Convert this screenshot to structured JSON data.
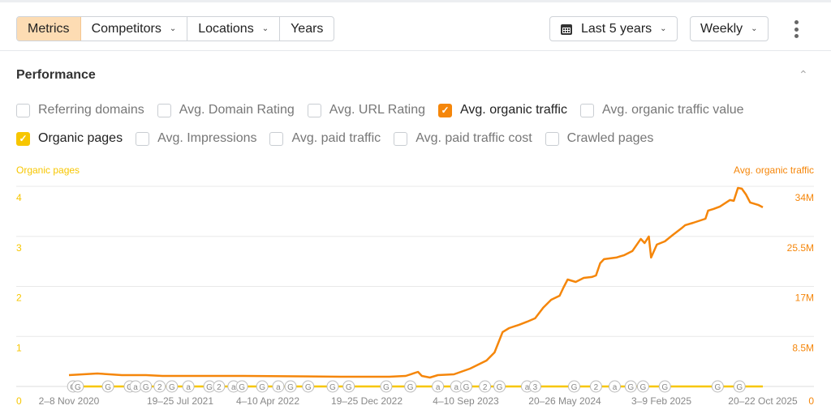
{
  "toolbar": {
    "tabs": [
      {
        "label": "Metrics",
        "active": true
      },
      {
        "label": "Competitors",
        "dropdown": true
      },
      {
        "label": "Locations",
        "dropdown": true
      },
      {
        "label": "Years"
      }
    ],
    "date_range": "Last 5 years",
    "interval": "Weekly",
    "calendar_icon": "calendar-icon",
    "more_icon": "vertical-dots-icon"
  },
  "panel": {
    "title": "Performance",
    "metrics_row1": [
      {
        "label": "Referring domains",
        "checked": false
      },
      {
        "label": "Avg. Domain Rating",
        "checked": false
      },
      {
        "label": "Avg. URL Rating",
        "checked": false
      },
      {
        "label": "Avg. organic traffic",
        "checked": true,
        "color": "#f5860a"
      },
      {
        "label": "Avg. organic traffic value",
        "checked": false
      }
    ],
    "metrics_row2": [
      {
        "label": "Organic pages",
        "checked": true,
        "color": "#f7c600"
      },
      {
        "label": "Avg. Impressions",
        "checked": false
      },
      {
        "label": "Avg. paid traffic",
        "checked": false
      },
      {
        "label": "Avg. paid traffic cost",
        "checked": false
      },
      {
        "label": "Crawled pages",
        "checked": false
      }
    ]
  },
  "chart_data": {
    "type": "line",
    "left_axis": {
      "label": "Organic pages",
      "ticks": [
        "0",
        "1",
        "2",
        "3",
        "4"
      ],
      "range": [
        0,
        4
      ],
      "color": "#f7c600"
    },
    "right_axis": {
      "label": "Avg. organic traffic",
      "ticks": [
        "0",
        "8.5M",
        "17M",
        "25.5M",
        "34M"
      ],
      "range": [
        0,
        34
      ],
      "unit": "M",
      "color": "#f5860a"
    },
    "x_ticks": [
      "2–8 Nov 2020",
      "19–25 Jul 2021",
      "4–10 Apr 2022",
      "19–25 Dec 2022",
      "4–10 Sep 2023",
      "20–26 May 2024",
      "3–9 Feb 2025",
      "20–22 Oct 2025"
    ],
    "x_range": [
      "2020-11-02",
      "2025-10-20"
    ],
    "grid": true,
    "series": [
      {
        "name": "Avg. organic traffic",
        "axis": "right",
        "color": "#f5860a",
        "points": [
          [
            "2020-11-02",
            1.93
          ],
          [
            "2021-01-15",
            2.2
          ],
          [
            "2021-03-20",
            1.93
          ],
          [
            "2021-05-22",
            1.93
          ],
          [
            "2021-07-04",
            1.79
          ],
          [
            "2022-02-01",
            1.79
          ],
          [
            "2022-10-13",
            1.65
          ],
          [
            "2023-02-17",
            1.65
          ],
          [
            "2023-04-01",
            1.79
          ],
          [
            "2023-05-03",
            2.48
          ],
          [
            "2023-05-13",
            1.79
          ],
          [
            "2023-06-03",
            1.51
          ],
          [
            "2023-06-24",
            1.93
          ],
          [
            "2023-08-05",
            2.07
          ],
          [
            "2023-09-16",
            3.03
          ],
          [
            "2023-10-29",
            4.41
          ],
          [
            "2023-11-19",
            5.78
          ],
          [
            "2023-12-10",
            9.23
          ],
          [
            "2023-12-27",
            9.91
          ],
          [
            "2024-01-22",
            10.47
          ],
          [
            "2024-02-12",
            11.0
          ],
          [
            "2024-03-04",
            11.57
          ],
          [
            "2024-03-25",
            13.36
          ],
          [
            "2024-04-15",
            14.73
          ],
          [
            "2024-05-07",
            15.42
          ],
          [
            "2024-05-17",
            16.8
          ],
          [
            "2024-05-28",
            18.17
          ],
          [
            "2024-06-18",
            17.76
          ],
          [
            "2024-07-09",
            18.45
          ],
          [
            "2024-07-30",
            18.59
          ],
          [
            "2024-08-10",
            18.86
          ],
          [
            "2024-08-21",
            20.93
          ],
          [
            "2024-08-31",
            21.62
          ],
          [
            "2024-10-02",
            21.9
          ],
          [
            "2024-10-23",
            22.31
          ],
          [
            "2024-11-13",
            23.0
          ],
          [
            "2024-12-05",
            25.06
          ],
          [
            "2024-12-15",
            24.37
          ],
          [
            "2024-12-26",
            25.48
          ],
          [
            "2025-01-01",
            21.9
          ],
          [
            "2025-01-16",
            24.1
          ],
          [
            "2025-02-06",
            24.65
          ],
          [
            "2025-02-27",
            25.75
          ],
          [
            "2025-03-21",
            26.85
          ],
          [
            "2025-03-31",
            27.4
          ],
          [
            "2025-04-21",
            27.81
          ],
          [
            "2025-05-23",
            28.5
          ],
          [
            "2025-05-30",
            29.88
          ],
          [
            "2025-06-13",
            30.16
          ],
          [
            "2025-06-30",
            30.57
          ],
          [
            "2025-07-26",
            31.67
          ],
          [
            "2025-08-05",
            31.54
          ],
          [
            "2025-08-16",
            33.73
          ],
          [
            "2025-08-26",
            33.6
          ],
          [
            "2025-09-06",
            32.63
          ],
          [
            "2025-09-17",
            31.26
          ],
          [
            "2025-10-08",
            30.85
          ],
          [
            "2025-10-20",
            30.43
          ]
        ]
      },
      {
        "name": "Organic pages",
        "axis": "left",
        "color": "#f7c600",
        "points": [
          [
            "2020-11-02",
            0
          ],
          [
            "2025-10-20",
            0
          ]
        ]
      }
    ],
    "annotations": [
      [
        "2020-11-13",
        "G"
      ],
      [
        "2020-11-25",
        "G"
      ],
      [
        "2021-02-12",
        "G"
      ],
      [
        "2021-04-10",
        "G"
      ],
      [
        "2021-04-25",
        "a"
      ],
      [
        "2021-05-22",
        "G"
      ],
      [
        "2021-06-27",
        "2"
      ],
      [
        "2021-07-29",
        "G"
      ],
      [
        "2021-09-10",
        "a"
      ],
      [
        "2021-11-04",
        "G"
      ],
      [
        "2021-11-29",
        "2"
      ],
      [
        "2022-01-06",
        "a"
      ],
      [
        "2022-01-28",
        "G"
      ],
      [
        "2022-03-22",
        "G"
      ],
      [
        "2022-05-03",
        "a"
      ],
      [
        "2022-06-04",
        "G"
      ],
      [
        "2022-07-20",
        "G"
      ],
      [
        "2022-09-22",
        "G"
      ],
      [
        "2022-11-03",
        "G"
      ],
      [
        "2023-02-09",
        "G"
      ],
      [
        "2023-04-13",
        "G"
      ],
      [
        "2023-06-24",
        "a"
      ],
      [
        "2023-08-11",
        "a"
      ],
      [
        "2023-09-06",
        "G"
      ],
      [
        "2023-10-25",
        "2"
      ],
      [
        "2023-12-02",
        "G"
      ],
      [
        "2024-02-12",
        "a"
      ],
      [
        "2024-03-04",
        "3"
      ],
      [
        "2024-06-14",
        "G"
      ],
      [
        "2024-08-10",
        "2"
      ],
      [
        "2024-09-28",
        "a"
      ],
      [
        "2024-11-09",
        "G"
      ],
      [
        "2024-12-11",
        "G"
      ],
      [
        "2025-02-06",
        "G"
      ],
      [
        "2025-06-24",
        "G"
      ],
      [
        "2025-08-20",
        "G"
      ]
    ]
  }
}
